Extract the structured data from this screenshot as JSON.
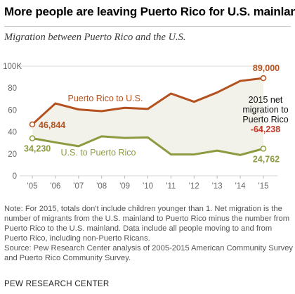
{
  "header": {
    "title": "More people are leaving Puerto Rico for U.S. mainland",
    "subtitle": "Migration between Puerto Rico and the U.S."
  },
  "colors": {
    "pr_to_us": "#b4511f",
    "us_to_pr": "#8d9a3f",
    "net_value": "#c0392b",
    "shade": "#f2f2ea",
    "grid": "#dddddd",
    "axis_text": "#666666"
  },
  "chart_data": {
    "type": "line",
    "title": "More people are leaving Puerto Rico for U.S. mainland",
    "subtitle": "Migration between Puerto Rico and the U.S.",
    "x": [
      "'05",
      "'06",
      "'07",
      "'08",
      "'09",
      "'10",
      "'11",
      "'12",
      "'13",
      "'14",
      "'15"
    ],
    "ylim": [
      0,
      100000
    ],
    "yticks": [
      0,
      20,
      40,
      60,
      80
    ],
    "ytick_labels": [
      "0",
      "20",
      "40",
      "60",
      "80"
    ],
    "ytop_label": "100K",
    "grid": true,
    "series": [
      {
        "name": "Puerto Rico to U.S.",
        "values": [
          46844,
          66000,
          60500,
          59000,
          62000,
          61000,
          75000,
          67500,
          76000,
          86500,
          89000
        ]
      },
      {
        "name": "U.S. to Puerto Rico",
        "values": [
          34230,
          30500,
          27000,
          36000,
          34500,
          35000,
          19500,
          19500,
          23000,
          19000,
          24762
        ]
      }
    ],
    "point_labels": {
      "pr_start": "46,844",
      "pr_end": "89,000",
      "us_start": "34,230",
      "us_end": "24,762"
    },
    "annotation": {
      "lines": [
        "2015 net",
        "migration to",
        "Puerto Rico"
      ],
      "value": "-64,238"
    }
  },
  "note": {
    "text": "Note: For 2015, totals don't include children younger than 1. Net migration is the number of migrants from the U.S. mainland to Puerto Rico minus the number from Puerto Rico to the U.S. mainland. Data include all people moving to and from Puerto Rico, including non-Puerto Ricans.",
    "source": "Source: Pew Research Center analysis of 2005-2015 American Community Survey and Puerto Rico Community Survey."
  },
  "footer": {
    "brand": "PEW RESEARCH CENTER"
  }
}
